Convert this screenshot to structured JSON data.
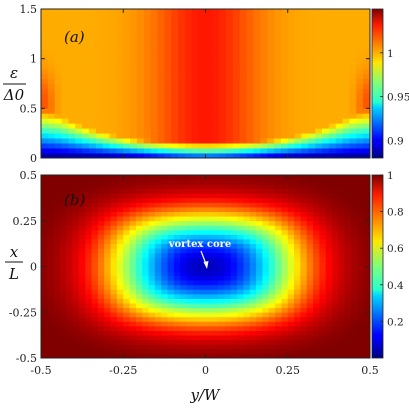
{
  "chart_data": [
    {
      "type": "heatmap",
      "panel_label": "(a)",
      "ylabel_num": "ε",
      "ylabel_den": "Δ0",
      "xlim": [
        -0.5,
        0.5
      ],
      "ylim": [
        0,
        1.5
      ],
      "yticks": [
        "0",
        "0.5",
        "1",
        "1.5"
      ],
      "colorbar": {
        "range": [
          0.88,
          1.05
        ],
        "ticks": [
          "0.9",
          "0.95",
          "1"
        ],
        "tick_values": [
          0.9,
          0.95,
          1.0
        ]
      }
    },
    {
      "type": "heatmap",
      "panel_label": "(b)",
      "ylabel_num": "x",
      "ylabel_den": "L",
      "xlabel": "y/W",
      "xlim": [
        -0.5,
        0.5
      ],
      "ylim": [
        -0.5,
        0.5
      ],
      "xticks": [
        "-0.5",
        "-0.25",
        "0",
        "0.25",
        "0.5"
      ],
      "yticks": [
        "-0.5",
        "-0.25",
        "0",
        "0.25",
        "0.5"
      ],
      "annotation": {
        "text": "vortex core",
        "x": 0,
        "y": 0
      },
      "colorbar": {
        "range": [
          0,
          1
        ],
        "ticks": [
          "0.2",
          "0.4",
          "0.6",
          "0.8",
          "1"
        ],
        "tick_values": [
          0.2,
          0.4,
          0.6,
          0.8,
          1.0
        ]
      }
    }
  ],
  "colors": {
    "axis": "#222222",
    "annotation": "#ffffff"
  }
}
